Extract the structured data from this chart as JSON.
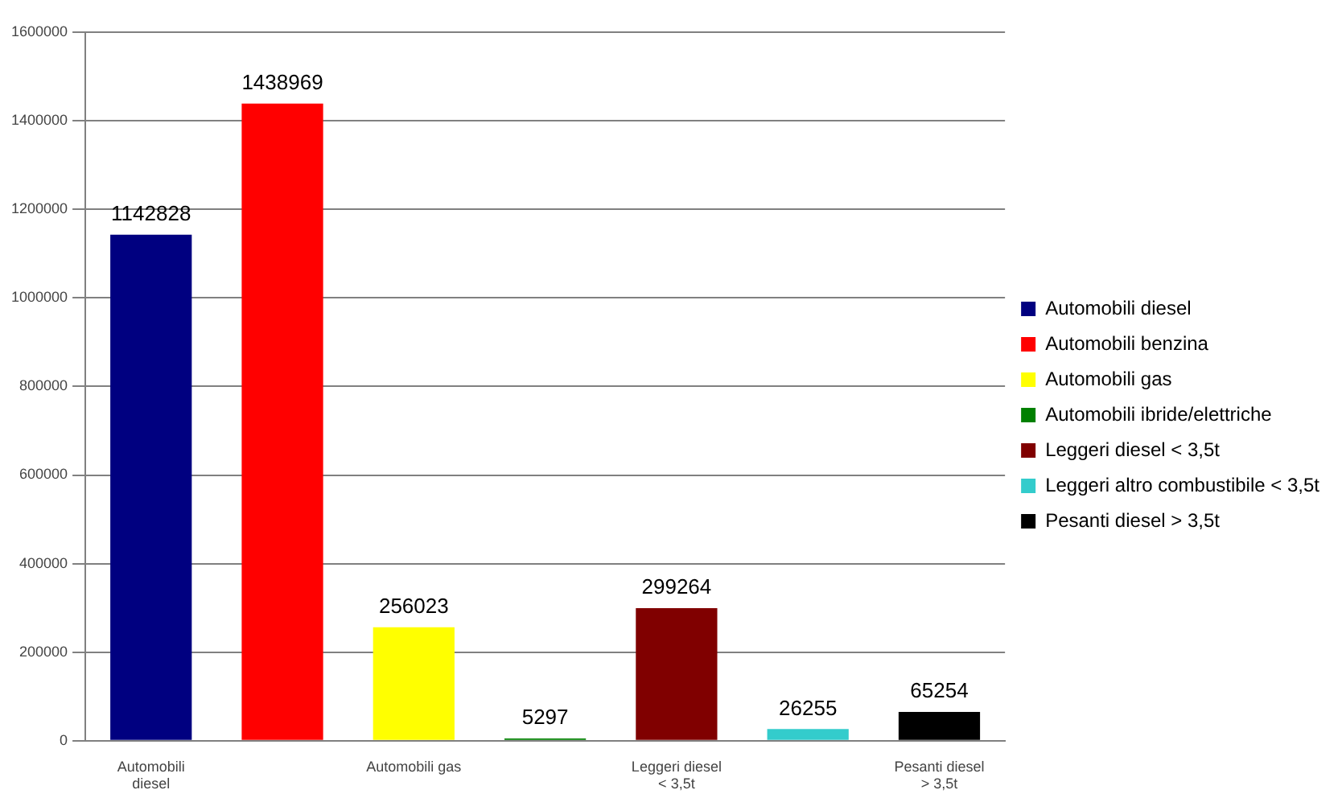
{
  "chart_data": {
    "type": "bar",
    "categories": [
      "Automobili diesel",
      null,
      "Automobili gas",
      null,
      "Leggeri diesel < 3,5t",
      null,
      "Pesanti diesel > 3,5t"
    ],
    "series": [
      {
        "name": "Automobili diesel",
        "color": "#000080",
        "values": [
          1142828,
          null,
          null,
          null,
          null,
          null,
          null
        ]
      },
      {
        "name": "Automobili benzina",
        "color": "#ff0000",
        "values": [
          null,
          1438969,
          null,
          null,
          null,
          null,
          null
        ]
      },
      {
        "name": "Automobili gas",
        "color": "#ffff00",
        "values": [
          null,
          null,
          256023,
          null,
          null,
          null,
          null
        ]
      },
      {
        "name": "Automobili ibride/elettriche",
        "color": "#008000",
        "values": [
          null,
          null,
          null,
          5297,
          null,
          null,
          null
        ]
      },
      {
        "name": "Leggeri diesel < 3,5t",
        "color": "#800000",
        "values": [
          null,
          null,
          null,
          null,
          299264,
          null,
          null
        ]
      },
      {
        "name": "Leggeri altro combustibile < 3,5t",
        "color": "#33cccc",
        "values": [
          null,
          null,
          null,
          null,
          null,
          26255,
          null
        ]
      },
      {
        "name": "Pesanti diesel > 3,5t",
        "color": "#000000",
        "values": [
          null,
          null,
          null,
          null,
          null,
          null,
          65254
        ]
      }
    ],
    "ylim": [
      0,
      1600000
    ],
    "yticks": [
      0,
      200000,
      400000,
      600000,
      800000,
      1000000,
      1200000,
      1400000,
      1600000
    ],
    "grid": "y",
    "legend": "right",
    "data_labels": true
  }
}
